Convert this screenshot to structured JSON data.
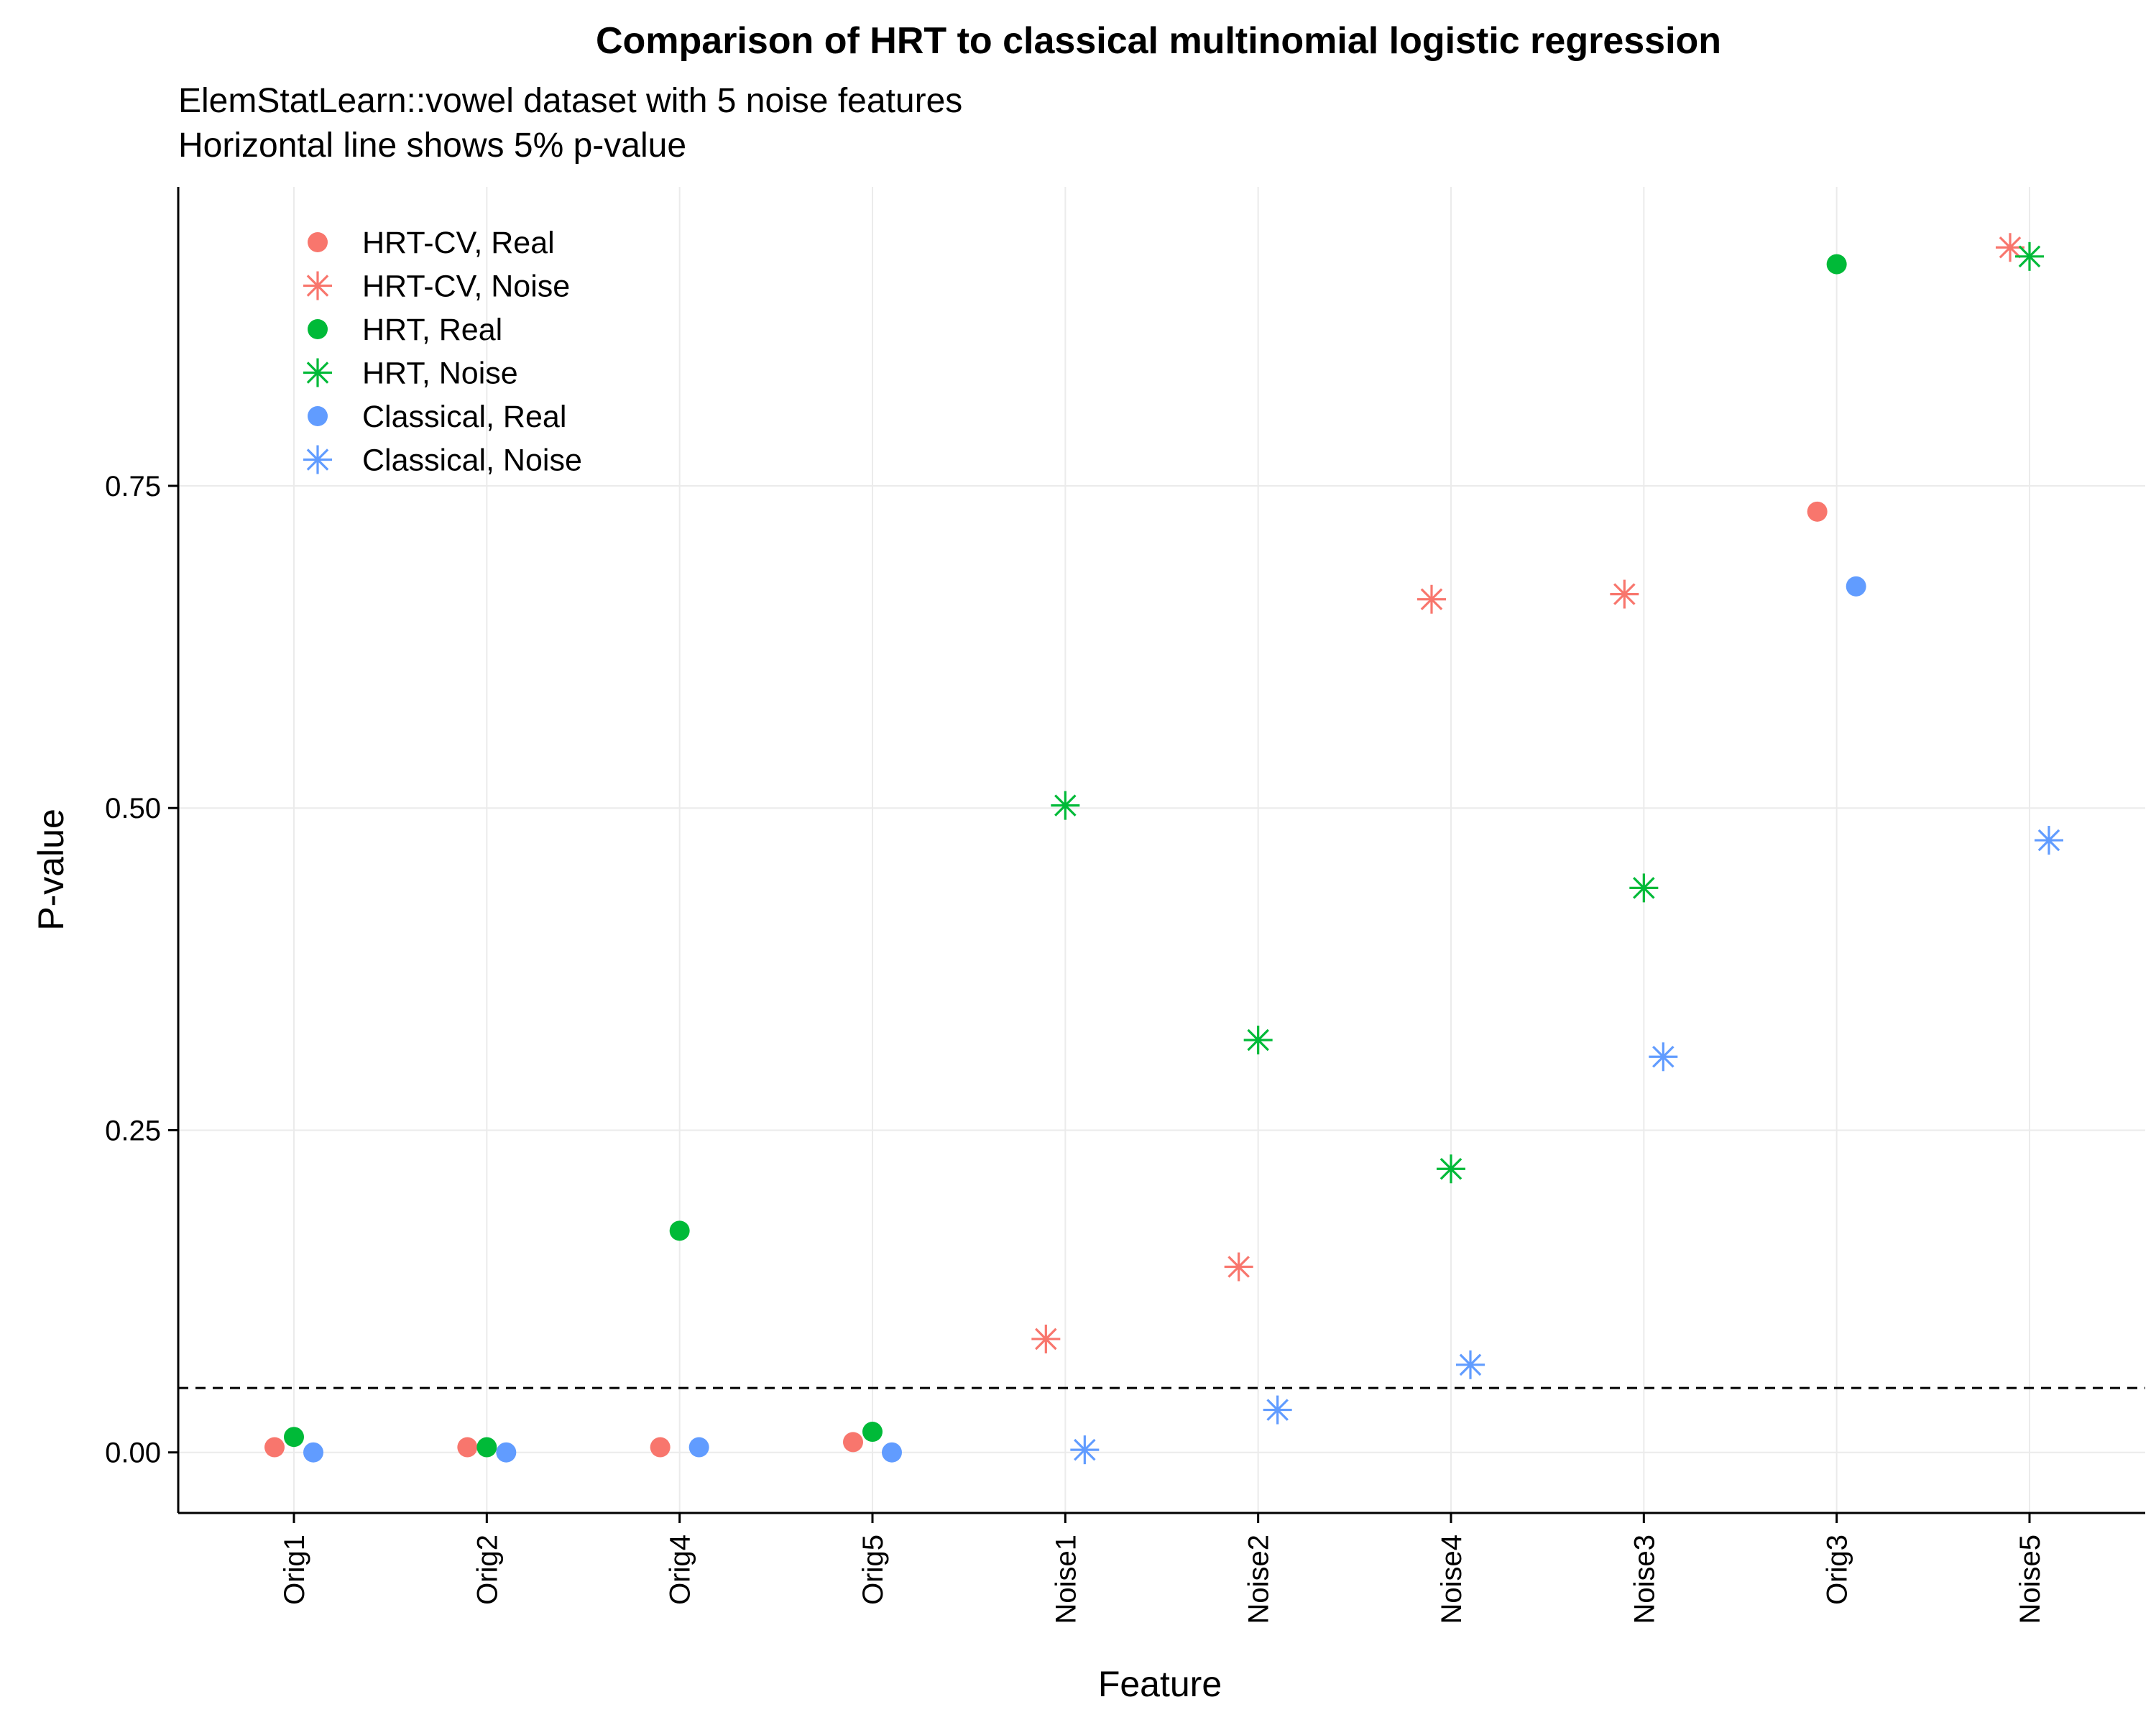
{
  "chart_data": {
    "type": "scatter",
    "title": "Comparison of HRT to classical multinomial logistic regression",
    "subtitle_lines": [
      "ElemStatLearn::vowel dataset with 5 noise features",
      "Horizontal line shows 5% p-value"
    ],
    "xlabel": "Feature",
    "ylabel": "P-value",
    "categories": [
      "Orig1",
      "Orig2",
      "Orig4",
      "Orig5",
      "Noise1",
      "Noise2",
      "Noise4",
      "Noise3",
      "Orig3",
      "Noise5"
    ],
    "y_ticks": [
      0,
      0.25,
      0.5,
      0.75
    ],
    "y_tick_labels": [
      "0.00",
      "0.25",
      "0.50",
      "0.75"
    ],
    "ylim": [
      -0.047,
      0.982
    ],
    "reference_line": {
      "y": 0.05,
      "style": "dashed"
    },
    "grid": true,
    "legend_position": "top-left",
    "series": [
      {
        "name": "HRT-CV, Real",
        "color": "#F8766D",
        "marker": "circle",
        "values": [
          0.004,
          0.004,
          0.004,
          0.008,
          null,
          null,
          null,
          null,
          0.73,
          null
        ]
      },
      {
        "name": "HRT-CV, Noise",
        "color": "#F8766D",
        "marker": "asterisk",
        "values": [
          null,
          null,
          null,
          null,
          0.088,
          0.144,
          0.662,
          0.666,
          null,
          0.935
        ]
      },
      {
        "name": "HRT, Real",
        "color": "#00BA38",
        "marker": "circle",
        "values": [
          0.012,
          0.004,
          0.172,
          0.016,
          null,
          null,
          null,
          null,
          0.922,
          null
        ]
      },
      {
        "name": "HRT, Noise",
        "color": "#00BA38",
        "marker": "asterisk",
        "values": [
          null,
          null,
          null,
          null,
          0.502,
          0.32,
          0.22,
          0.438,
          null,
          0.928
        ]
      },
      {
        "name": "Classical, Real",
        "color": "#619CFF",
        "marker": "circle",
        "values": [
          0.0,
          0.0,
          0.004,
          0.0,
          null,
          null,
          null,
          null,
          0.672,
          null
        ]
      },
      {
        "name": "Classical, Noise",
        "color": "#619CFF",
        "marker": "asterisk",
        "values": [
          null,
          null,
          null,
          null,
          0.002,
          0.033,
          0.068,
          0.307,
          null,
          0.475
        ]
      }
    ]
  }
}
